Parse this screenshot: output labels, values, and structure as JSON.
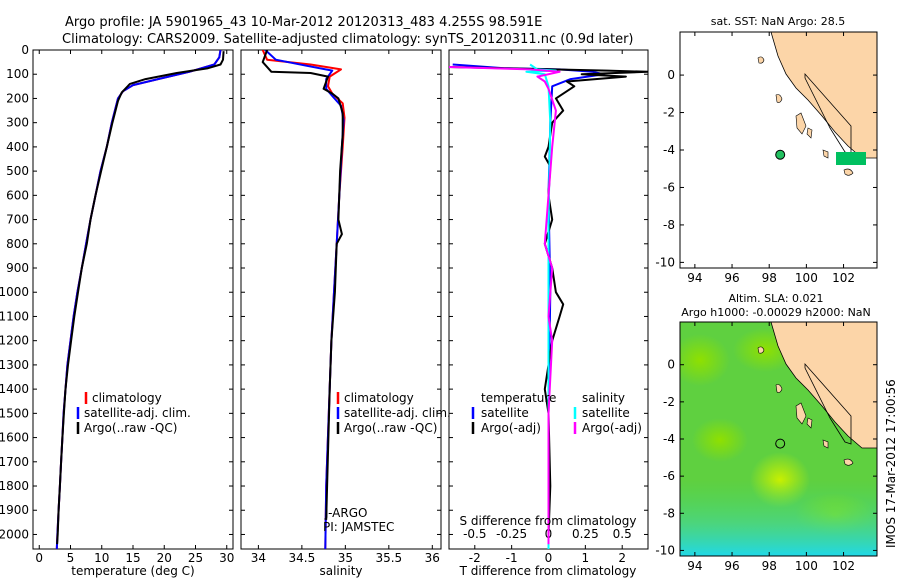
{
  "header": {
    "line1": "Argo profile: JA 5901965_43 10-Mar-2012 20120313_483 4.255S 98.591E",
    "line2": "Climatology: CARS2009. Satellite-adjusted climatology: synTS_20120311.nc (0.9d later)"
  },
  "colors": {
    "climatology": "#ff0000",
    "satellite": "#0000ff",
    "argo": "#000000",
    "satellite_s": "#00ffff",
    "argo_s": "#ff00ff",
    "land": "#fcd5a8",
    "shelf": "#00c060"
  },
  "side_label": "IMOS 17-Mar-2012 17:00:56",
  "chart_data": [
    {
      "type": "line",
      "id": "temperature",
      "xlabel": "temperature (deg C)",
      "ylabel": "",
      "xlim": [
        -1,
        31
      ],
      "ylim": [
        2060,
        0
      ],
      "xticks": [
        0,
        5,
        10,
        15,
        20,
        25,
        30
      ],
      "yticks": [
        0,
        100,
        200,
        300,
        400,
        500,
        600,
        700,
        800,
        900,
        1000,
        1100,
        1200,
        1300,
        1400,
        1500,
        1600,
        1700,
        1800,
        1900,
        2000
      ],
      "legend": {
        "placement": "lower-middle",
        "entries": [
          "climatology",
          "satellite-adj. clim.",
          "Argo(..raw -QC)"
        ]
      },
      "series": [
        {
          "name": "climatology",
          "color": "#ff0000",
          "points": [
            [
              29,
              0
            ],
            [
              28.8,
              30
            ],
            [
              28,
              60
            ],
            [
              24,
              90
            ],
            [
              19,
              120
            ],
            [
              15,
              145
            ],
            [
              13.4,
              170
            ],
            [
              12.6,
              200
            ],
            [
              11.6,
              300
            ],
            [
              10.8,
              400
            ],
            [
              9.8,
              500
            ],
            [
              9,
              600
            ],
            [
              8.2,
              700
            ],
            [
              7.5,
              800
            ],
            [
              6.8,
              900
            ],
            [
              6.1,
              1000
            ],
            [
              5.5,
              1100
            ],
            [
              5,
              1200
            ],
            [
              4.5,
              1300
            ],
            [
              4.2,
              1400
            ],
            [
              3.9,
              1500
            ],
            [
              3.7,
              1600
            ],
            [
              3.5,
              1700
            ],
            [
              3.3,
              1800
            ],
            [
              3.1,
              1900
            ],
            [
              2.9,
              2000
            ],
            [
              2.8,
              2060
            ]
          ]
        },
        {
          "name": "satellite-adj. clim.",
          "color": "#0000ff",
          "points": [
            [
              29,
              0
            ],
            [
              28.8,
              30
            ],
            [
              28,
              60
            ],
            [
              24,
              90
            ],
            [
              19,
              120
            ],
            [
              15,
              145
            ],
            [
              13.4,
              170
            ],
            [
              12.6,
              200
            ],
            [
              11.6,
              300
            ],
            [
              10.8,
              400
            ],
            [
              9.8,
              500
            ],
            [
              9,
              600
            ],
            [
              8.2,
              700
            ],
            [
              7.5,
              800
            ],
            [
              6.8,
              900
            ],
            [
              6.1,
              1000
            ],
            [
              5.5,
              1100
            ],
            [
              5,
              1200
            ],
            [
              4.5,
              1300
            ],
            [
              4.2,
              1400
            ],
            [
              3.9,
              1500
            ],
            [
              3.7,
              1600
            ],
            [
              3.5,
              1700
            ],
            [
              3.3,
              1800
            ],
            [
              3.1,
              1900
            ],
            [
              2.9,
              2000
            ],
            [
              2.8,
              2060
            ]
          ]
        },
        {
          "name": "Argo(..raw -QC)",
          "color": "#000000",
          "points": [
            [
              29.5,
              5
            ],
            [
              29.4,
              40
            ],
            [
              29,
              60
            ],
            [
              27,
              75
            ],
            [
              22,
              95
            ],
            [
              17,
              120
            ],
            [
              14.5,
              140
            ],
            [
              13.2,
              175
            ],
            [
              12.6,
              210
            ],
            [
              11.7,
              300
            ],
            [
              10.8,
              400
            ],
            [
              9.9,
              500
            ],
            [
              9,
              600
            ],
            [
              8.2,
              700
            ],
            [
              7.6,
              800
            ],
            [
              6.8,
              900
            ],
            [
              6.2,
              1000
            ],
            [
              5.6,
              1100
            ],
            [
              5.1,
              1200
            ],
            [
              4.6,
              1300
            ],
            [
              4.2,
              1400
            ],
            [
              3.95,
              1500
            ],
            [
              3.7,
              1600
            ],
            [
              3.5,
              1700
            ],
            [
              3.3,
              1800
            ],
            [
              3.1,
              1900
            ],
            [
              2.95,
              2000
            ],
            [
              2.85,
              2040
            ]
          ]
        }
      ]
    },
    {
      "type": "line",
      "id": "salinity",
      "xlabel": "salinity",
      "xlim": [
        33.8,
        36.1
      ],
      "ylim": [
        2060,
        0
      ],
      "xticks": [
        34,
        34.5,
        35,
        35.5,
        36
      ],
      "legend": {
        "placement": "lower-middle",
        "entries": [
          "climatology",
          "satellite-adj. clim.",
          "Argo(..raw -QC)"
        ]
      },
      "annotations": [
        "J-ARGO",
        "PI: JAMSTEC"
      ],
      "series": [
        {
          "name": "climatology",
          "color": "#ff0000",
          "points": [
            [
              34.05,
              0
            ],
            [
              34.1,
              40
            ],
            [
              34.6,
              60
            ],
            [
              34.95,
              80
            ],
            [
              34.82,
              110
            ],
            [
              34.8,
              150
            ],
            [
              34.85,
              180
            ],
            [
              34.97,
              220
            ],
            [
              34.99,
              280
            ],
            [
              34.97,
              400
            ],
            [
              34.93,
              600
            ],
            [
              34.9,
              800
            ],
            [
              34.87,
              1000
            ],
            [
              34.84,
              1200
            ],
            [
              34.81,
              1500
            ],
            [
              34.78,
              1800
            ],
            [
              34.77,
              2060
            ]
          ]
        },
        {
          "name": "satellite-adj. clim.",
          "color": "#0000ff",
          "points": [
            [
              34.08,
              0
            ],
            [
              34.2,
              40
            ],
            [
              34.55,
              65
            ],
            [
              34.85,
              85
            ],
            [
              34.78,
              120
            ],
            [
              34.78,
              160
            ],
            [
              34.85,
              190
            ],
            [
              34.95,
              230
            ],
            [
              34.98,
              290
            ],
            [
              34.96,
              400
            ],
            [
              34.93,
              600
            ],
            [
              34.9,
              800
            ],
            [
              34.87,
              1000
            ],
            [
              34.84,
              1200
            ],
            [
              34.81,
              1500
            ],
            [
              34.78,
              1800
            ],
            [
              34.77,
              2060
            ]
          ]
        },
        {
          "name": "Argo(..raw -QC)",
          "color": "#000000",
          "points": [
            [
              34.1,
              0
            ],
            [
              34.05,
              50
            ],
            [
              34.15,
              90
            ],
            [
              34.6,
              95
            ],
            [
              34.8,
              110
            ],
            [
              34.75,
              160
            ],
            [
              34.85,
              180
            ],
            [
              34.92,
              200
            ],
            [
              34.97,
              260
            ],
            [
              34.97,
              350
            ],
            [
              34.94,
              500
            ],
            [
              34.92,
              700
            ],
            [
              34.96,
              760
            ],
            [
              34.9,
              800
            ],
            [
              34.88,
              1000
            ],
            [
              34.84,
              1200
            ],
            [
              34.82,
              1400
            ],
            [
              34.79,
              1800
            ],
            [
              34.78,
              1940
            ]
          ]
        }
      ]
    },
    {
      "type": "line",
      "id": "difference",
      "xlabel": "T difference from climatology",
      "xlabel_top": "S difference from climatology",
      "xlim": [
        -2.7,
        2.7
      ],
      "ylim": [
        2060,
        0
      ],
      "xticks": [
        -2,
        -1,
        0,
        1,
        2
      ],
      "xticklabels_top": [
        "-0.5",
        "-0.25",
        "0",
        "0.25",
        "0.5"
      ],
      "legend": {
        "placement": "lower-middle",
        "headers": [
          "temperature",
          "salinity"
        ],
        "entries": [
          "satellite",
          "Argo(-adj)",
          "satellite",
          "Argo(-adj)"
        ]
      },
      "series": [
        {
          "name": "temperature satellite",
          "color": "#0000ff",
          "points": [
            [
              -2.6,
              60
            ],
            [
              -1.2,
              75
            ],
            [
              0.3,
              80
            ],
            [
              1.2,
              90
            ],
            [
              1.5,
              100
            ],
            [
              0.6,
              120
            ],
            [
              0.1,
              150
            ],
            [
              0.05,
              300
            ],
            [
              0,
              600
            ],
            [
              0.05,
              1000
            ],
            [
              0,
              1500
            ],
            [
              0,
              2060
            ]
          ]
        },
        {
          "name": "temperature Argo(-adj)",
          "color": "#000000",
          "points": [
            [
              -2.7,
              70
            ],
            [
              0.1,
              80
            ],
            [
              1.6,
              85
            ],
            [
              2.7,
              90
            ],
            [
              0.9,
              100
            ],
            [
              2.1,
              110
            ],
            [
              0.5,
              130
            ],
            [
              0.7,
              150
            ],
            [
              0.2,
              200
            ],
            [
              0.4,
              250
            ],
            [
              0.1,
              300
            ],
            [
              0,
              400
            ],
            [
              -0.1,
              440
            ],
            [
              0.05,
              480
            ],
            [
              0,
              600
            ],
            [
              0.1,
              700
            ],
            [
              -0.1,
              800
            ],
            [
              0.1,
              900
            ],
            [
              0.2,
              1000
            ],
            [
              0.4,
              1050
            ],
            [
              0.3,
              1100
            ],
            [
              0.1,
              1200
            ],
            [
              0,
              1300
            ],
            [
              -0.1,
              1400
            ],
            [
              0,
              1500
            ],
            [
              0.05,
              1800
            ],
            [
              0,
              2000
            ]
          ]
        },
        {
          "name": "salinity satellite",
          "color": "#00ffff",
          "points": [
            [
              -0.5,
              60
            ],
            [
              -0.3,
              80
            ],
            [
              0.2,
              85
            ],
            [
              -0.6,
              90
            ],
            [
              -0.1,
              100
            ],
            [
              0,
              150
            ],
            [
              0.05,
              300
            ],
            [
              0,
              700
            ],
            [
              0,
              1500
            ],
            [
              0,
              2060
            ]
          ]
        },
        {
          "name": "salinity Argo(-adj)",
          "color": "#ff00ff",
          "points": [
            [
              -2.7,
              70
            ],
            [
              -0.5,
              80
            ],
            [
              0.3,
              90
            ],
            [
              -0.3,
              110
            ],
            [
              -0.1,
              130
            ],
            [
              0,
              160
            ],
            [
              0.2,
              250
            ],
            [
              0.1,
              400
            ],
            [
              0,
              600
            ],
            [
              -0.1,
              800
            ],
            [
              0.1,
              900
            ],
            [
              0,
              1100
            ],
            [
              0.1,
              1200
            ],
            [
              0,
              1500
            ],
            [
              0,
              1700
            ],
            [
              0,
              2040
            ]
          ]
        }
      ]
    },
    {
      "type": "map",
      "id": "sst-map",
      "title": "sat. SST: NaN Argo: 28.5",
      "xlim": [
        93.2,
        103.8
      ],
      "ylim": [
        -10.3,
        2.3
      ],
      "xticks": [
        94,
        96,
        98,
        100,
        102
      ],
      "yticks": [
        0,
        -2,
        -4,
        -6,
        -8,
        -10
      ],
      "argo_position": [
        98.59,
        -4.25
      ]
    },
    {
      "type": "map",
      "id": "sla-map",
      "title_line1": "Altim. SLA: 0.021",
      "title_line2": "Argo h1000: -0.00029 h2000: NaN",
      "xlim": [
        93.2,
        103.8
      ],
      "ylim": [
        -10.3,
        2.3
      ],
      "xticks": [
        94,
        96,
        98,
        100,
        102
      ],
      "yticks": [
        0,
        -2,
        -4,
        -6,
        -8,
        -10
      ],
      "argo_position": [
        98.59,
        -4.25
      ]
    }
  ]
}
